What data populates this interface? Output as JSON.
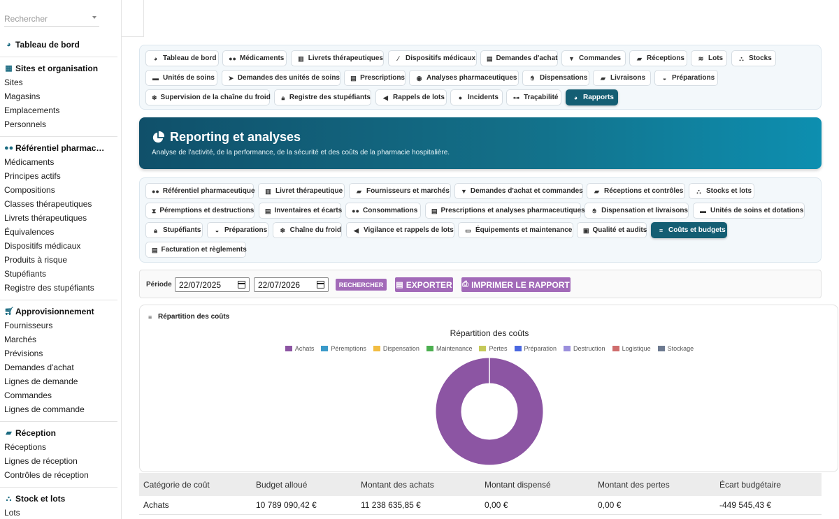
{
  "search": {
    "placeholder": "Rechercher"
  },
  "sidebar": {
    "dashboard": "Tableau de bord",
    "sections": [
      {
        "title": "Sites et organisation",
        "icon": "building-icon",
        "items": [
          "Sites",
          "Magasins",
          "Emplacements",
          "Personnels"
        ]
      },
      {
        "title": "Référentiel pharmac…",
        "icon": "pills-icon",
        "items": [
          "Médicaments",
          "Principes actifs",
          "Compositions",
          "Classes thérapeutiques",
          "Livrets thérapeutiques",
          "Équivalences",
          "Dispositifs médicaux",
          "Produits à risque",
          "Stupéfiants",
          "Registre des stupéfiants"
        ]
      },
      {
        "title": "Approvisionnement",
        "icon": "cart-icon",
        "items": [
          "Fournisseurs",
          "Marchés",
          "Prévisions",
          "Demandes d'achat",
          "Lignes de demande",
          "Commandes",
          "Lignes de commande"
        ]
      },
      {
        "title": "Réception",
        "icon": "truck-icon",
        "items": [
          "Réceptions",
          "Lignes de réception",
          "Contrôles de réception"
        ]
      },
      {
        "title": "Stock et lots",
        "icon": "cubes-icon",
        "items": [
          "Lots"
        ]
      }
    ]
  },
  "module_nav": [
    "Tableau de bord",
    "Médicaments",
    "Livrets thérapeutiques",
    "Dispositifs médicaux",
    "Demandes d'achat",
    "Commandes",
    "Réceptions",
    "Lots",
    "Stocks",
    "Unités de soins",
    "Demandes des unités de soins",
    "Prescriptions",
    "Analyses pharmaceutiques",
    "Dispensations",
    "Livraisons",
    "Préparations",
    "Supervision de la chaîne du froid",
    "Registre des stupéfiants",
    "Rappels de lots",
    "Incidents",
    "Traçabilité",
    "Rapports"
  ],
  "banner": {
    "title": "Reporting et analyses",
    "subtitle": "Analyse de l'activité, de la performance, de la sécurité et des coûts de la pharmacie hospitalière."
  },
  "report_nav": [
    "Référentiel pharmaceutique",
    "Livret thérapeutique",
    "Fournisseurs et marchés",
    "Demandes d'achat et commandes",
    "Réceptions et contrôles",
    "Stocks et lots",
    "Péremptions et destructions",
    "Inventaires et écarts",
    "Consommations",
    "Prescriptions et analyses pharmaceutiques",
    "Dispensation et livraisons",
    "Unités de soins et dotations",
    "Stupéfiants",
    "Préparations",
    "Chaîne du froid",
    "Vigilance et rappels de lots",
    "Équipements et maintenance",
    "Qualité et audits",
    "Coûts et budgets",
    "Facturation et règlements"
  ],
  "filter": {
    "period_label": "Période",
    "date_from": "22/07/2025",
    "date_to": "22/07/2026",
    "search_label": "RECHERCHER",
    "export_label": "EXPORTER",
    "print_label": "IMPRIMER LE RAPPORT"
  },
  "card": {
    "title": "Répartition des coûts"
  },
  "chart_data": {
    "type": "pie",
    "title": "Répartition des coûts",
    "legend_position": "top",
    "donut": true,
    "series": [
      {
        "name": "Achats",
        "value": 11238635.85,
        "color": "#8c55a3"
      },
      {
        "name": "Péremptions",
        "value": 0,
        "color": "#3a9ac9"
      },
      {
        "name": "Dispensation",
        "value": 0,
        "color": "#f2bd42"
      },
      {
        "name": "Maintenance",
        "value": 0,
        "color": "#4caf50"
      },
      {
        "name": "Pertes",
        "value": 0,
        "color": "#c5c95a"
      },
      {
        "name": "Préparation",
        "value": 0,
        "color": "#4a67e0"
      },
      {
        "name": "Destruction",
        "value": 0,
        "color": "#9b8fdc"
      },
      {
        "name": "Logistique",
        "value": 0,
        "color": "#cf6d6d"
      },
      {
        "name": "Stockage",
        "value": 0,
        "color": "#6d7a90"
      }
    ]
  },
  "table": {
    "headers": [
      "Catégorie de coût",
      "Budget alloué",
      "Montant des achats",
      "Montant dispensé",
      "Montant des pertes",
      "Écart budgétaire"
    ],
    "rows": [
      [
        "Achats",
        "10 789 090,42 €",
        "11 238 635,85 €",
        "0,00 €",
        "0,00 €",
        "-449 545,43 €"
      ]
    ]
  }
}
